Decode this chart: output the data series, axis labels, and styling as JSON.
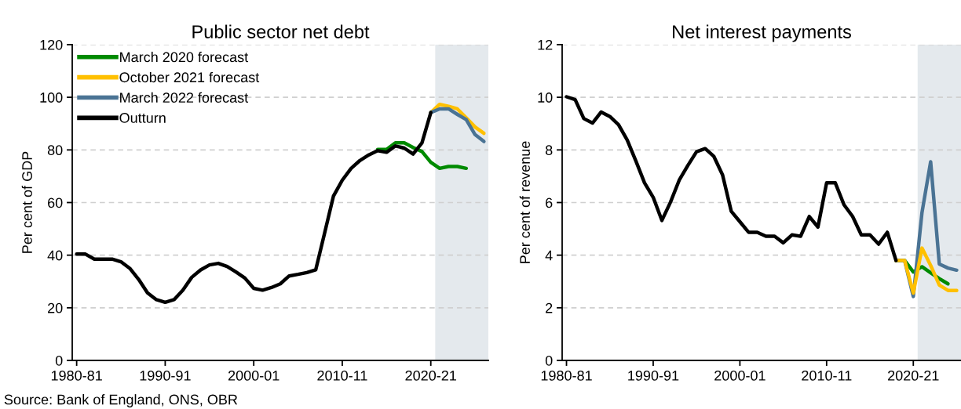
{
  "chart_data": [
    {
      "type": "line",
      "title": "Public sector net debt",
      "ylabel": "Per cent of GDP",
      "categories": [
        "1980-81",
        null,
        null,
        null,
        null,
        null,
        null,
        null,
        null,
        null,
        "1990-91",
        null,
        null,
        null,
        null,
        null,
        null,
        null,
        null,
        null,
        "2000-01",
        null,
        null,
        null,
        null,
        null,
        null,
        null,
        null,
        null,
        "2010-11",
        null,
        null,
        null,
        null,
        null,
        null,
        null,
        null,
        null,
        "2020-21",
        null,
        null,
        null,
        null,
        null,
        null
      ],
      "ylim": [
        0,
        120
      ],
      "yticks": [
        0,
        20,
        40,
        60,
        80,
        100,
        120
      ],
      "grid": "y",
      "legend": "top left",
      "line_style": "solid",
      "marker": "none",
      "series": [
        {
          "name": "March 2020 forecast",
          "color": "#008a00",
          "values": [
            null,
            null,
            null,
            null,
            null,
            null,
            null,
            null,
            null,
            null,
            null,
            null,
            null,
            null,
            null,
            null,
            null,
            null,
            null,
            null,
            null,
            null,
            null,
            null,
            null,
            null,
            null,
            null,
            null,
            null,
            null,
            null,
            null,
            null,
            80.2,
            80.2,
            82.7,
            82.7,
            80.9,
            79.4,
            75.3,
            73,
            73.7,
            73.7,
            73,
            null,
            null
          ]
        },
        {
          "name": "October 2021 forecast",
          "color": "#ffc000",
          "values": [
            null,
            null,
            null,
            null,
            null,
            null,
            null,
            null,
            null,
            null,
            null,
            null,
            null,
            null,
            null,
            null,
            null,
            null,
            null,
            null,
            null,
            null,
            null,
            null,
            null,
            null,
            null,
            null,
            null,
            null,
            null,
            null,
            null,
            null,
            null,
            null,
            null,
            null,
            null,
            null,
            94.2,
            97.3,
            96.6,
            95.6,
            92.2,
            88.7,
            86.3
          ]
        },
        {
          "name": "March 2022 forecast",
          "color": "#4a7394",
          "values": [
            null,
            null,
            null,
            null,
            null,
            null,
            null,
            null,
            null,
            null,
            null,
            null,
            null,
            null,
            null,
            null,
            null,
            null,
            null,
            null,
            null,
            null,
            null,
            null,
            null,
            null,
            null,
            null,
            null,
            null,
            null,
            null,
            null,
            null,
            null,
            null,
            null,
            null,
            null,
            null,
            94.2,
            95.6,
            95.6,
            93.5,
            91.5,
            85.8,
            83.2
          ]
        },
        {
          "name": "Outturn",
          "color": "#000000",
          "values": [
            40.4,
            40.4,
            38.5,
            38.5,
            38.5,
            37.5,
            35,
            30.8,
            25.7,
            23.1,
            22.1,
            23.1,
            26.7,
            31.6,
            34.4,
            36.3,
            36.9,
            35.7,
            33.6,
            31.3,
            27.4,
            26.7,
            27.7,
            29.1,
            32.1,
            32.7,
            33.4,
            34.4,
            48.3,
            62.4,
            68.5,
            73,
            76,
            78.1,
            79.7,
            79.1,
            81.5,
            80.7,
            78.4,
            82.7,
            94.2,
            null,
            null,
            null,
            null,
            null,
            null
          ]
        }
      ],
      "annotations": [
        "Source: Bank of England, ONS, OBR"
      ]
    },
    {
      "type": "line",
      "title": "Net interest payments",
      "ylabel": "Per cent of revenue",
      "categories": [
        "1980-81",
        null,
        null,
        null,
        null,
        null,
        null,
        null,
        null,
        null,
        "1990-91",
        null,
        null,
        null,
        null,
        null,
        null,
        null,
        null,
        null,
        "2000-01",
        null,
        null,
        null,
        null,
        null,
        null,
        null,
        null,
        null,
        "2010-11",
        null,
        null,
        null,
        null,
        null,
        null,
        null,
        null,
        null,
        "2020-21",
        null,
        null,
        null,
        null,
        null
      ],
      "ylim": [
        0,
        12
      ],
      "yticks": [
        0,
        2,
        4,
        6,
        8,
        10,
        12
      ],
      "grid": "y",
      "line_style": "solid",
      "marker": "none",
      "series": [
        {
          "color": "#008a00",
          "values": [
            null,
            null,
            null,
            null,
            null,
            null,
            null,
            null,
            null,
            null,
            null,
            null,
            null,
            null,
            null,
            null,
            null,
            null,
            null,
            null,
            null,
            null,
            null,
            null,
            null,
            null,
            null,
            null,
            null,
            null,
            null,
            null,
            null,
            null,
            null,
            null,
            null,
            null,
            3.8,
            3.8,
            3.36,
            3.56,
            3.33,
            3.11,
            2.91,
            null
          ]
        },
        {
          "color": "#4a7394",
          "values": [
            null,
            null,
            null,
            null,
            null,
            null,
            null,
            null,
            null,
            null,
            null,
            null,
            null,
            null,
            null,
            null,
            null,
            null,
            null,
            null,
            null,
            null,
            null,
            null,
            null,
            null,
            null,
            null,
            null,
            null,
            null,
            null,
            null,
            null,
            null,
            null,
            null,
            null,
            3.8,
            3.8,
            2.43,
            5.62,
            7.55,
            3.66,
            3.51,
            3.43
          ]
        },
        {
          "color": "#ffc000",
          "values": [
            null,
            null,
            null,
            null,
            null,
            null,
            null,
            null,
            null,
            null,
            null,
            null,
            null,
            null,
            null,
            null,
            null,
            null,
            null,
            null,
            null,
            null,
            null,
            null,
            null,
            null,
            null,
            null,
            null,
            null,
            null,
            null,
            null,
            null,
            null,
            null,
            null,
            null,
            3.8,
            3.8,
            2.56,
            4.27,
            3.61,
            2.86,
            2.66,
            2.66
          ]
        },
        {
          "color": "#000000",
          "values": [
            10.02,
            9.91,
            9.19,
            9.02,
            9.44,
            9.27,
            8.96,
            8.38,
            7.58,
            6.75,
            6.2,
            5.32,
            6.02,
            6.85,
            7.41,
            7.93,
            8.05,
            7.75,
            7.05,
            5.67,
            5.27,
            4.87,
            4.87,
            4.72,
            4.72,
            4.47,
            4.77,
            4.72,
            5.47,
            5.07,
            6.75,
            6.75,
            5.92,
            5.47,
            4.77,
            4.77,
            4.42,
            4.87,
            3.8,
            null,
            null,
            null,
            null,
            null,
            null,
            null
          ]
        }
      ]
    }
  ]
}
